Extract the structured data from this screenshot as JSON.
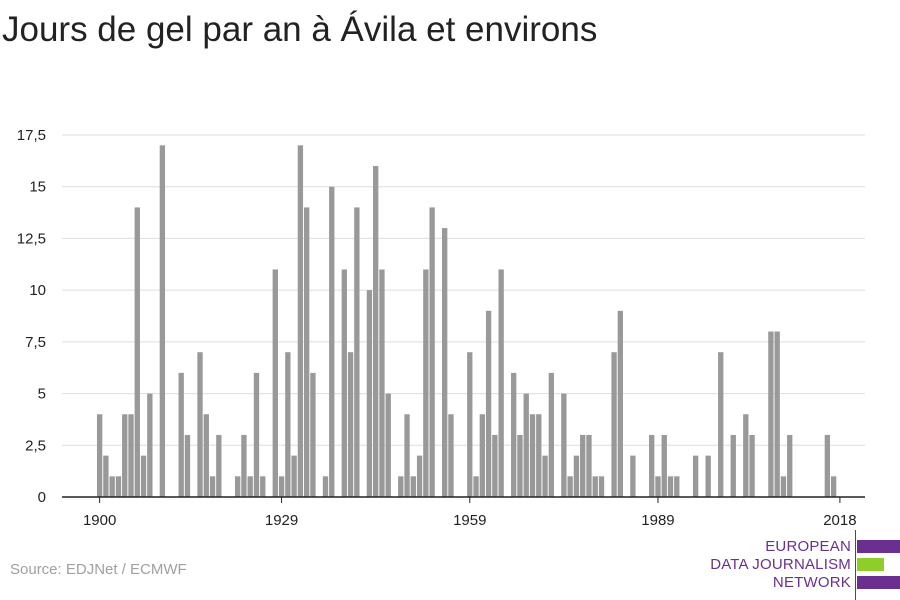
{
  "title": "Jours de gel par an à Ávila et environs",
  "source": "Source: EDJNet / ECMWF",
  "logo": {
    "line1": "EUROPEAN",
    "line2": "DATA JOURNALISM",
    "line3": "NETWORK",
    "colors": {
      "purple": "#6a2f8f",
      "green": "#8fce2a"
    }
  },
  "colors": {
    "bar": "#999999",
    "grid": "#dddddd",
    "axis": "#222222"
  },
  "chart_data": {
    "type": "bar",
    "title": "Jours de gel par an à Ávila et environs",
    "xlabel": "",
    "ylabel": "",
    "ylim": [
      0,
      17.5
    ],
    "yticks": [
      0,
      2.5,
      5,
      7.5,
      10,
      12.5,
      15,
      17.5
    ],
    "ytick_labels": [
      "0",
      "2,5",
      "5",
      "7,5",
      "10",
      "12,5",
      "15",
      "17,5"
    ],
    "xticks": [
      1900,
      1929,
      1959,
      1989,
      2018
    ],
    "xtick_labels": [
      "1900",
      "1929",
      "1959",
      "1989",
      "2018"
    ],
    "xlim": [
      1894,
      2022
    ],
    "grid": true,
    "legend": "none",
    "x": [
      1900,
      1901,
      1902,
      1903,
      1904,
      1905,
      1906,
      1907,
      1908,
      1909,
      1910,
      1911,
      1912,
      1913,
      1914,
      1915,
      1916,
      1917,
      1918,
      1919,
      1920,
      1921,
      1922,
      1923,
      1924,
      1925,
      1926,
      1927,
      1928,
      1929,
      1930,
      1931,
      1932,
      1933,
      1934,
      1935,
      1936,
      1937,
      1938,
      1939,
      1940,
      1941,
      1942,
      1943,
      1944,
      1945,
      1946,
      1947,
      1948,
      1949,
      1950,
      1951,
      1952,
      1953,
      1954,
      1955,
      1956,
      1957,
      1958,
      1959,
      1960,
      1961,
      1962,
      1963,
      1964,
      1965,
      1966,
      1967,
      1968,
      1969,
      1970,
      1971,
      1972,
      1973,
      1974,
      1975,
      1976,
      1977,
      1978,
      1979,
      1980,
      1981,
      1982,
      1983,
      1984,
      1985,
      1986,
      1987,
      1988,
      1989,
      1990,
      1991,
      1992,
      1993,
      1994,
      1995,
      1996,
      1997,
      1998,
      1999,
      2000,
      2001,
      2002,
      2003,
      2004,
      2005,
      2006,
      2007,
      2008,
      2009,
      2010,
      2011,
      2012,
      2013,
      2014,
      2015,
      2016,
      2017,
      2018,
      2019
    ],
    "values": [
      4,
      2,
      1,
      1,
      4,
      4,
      14,
      2,
      5,
      0,
      17,
      0,
      0,
      6,
      3,
      0,
      7,
      4,
      1,
      3,
      0,
      0,
      1,
      3,
      1,
      6,
      1,
      0,
      11,
      1,
      7,
      2,
      17,
      14,
      6,
      0,
      1,
      15,
      0,
      11,
      7,
      14,
      0,
      10,
      16,
      11,
      5,
      0,
      1,
      4,
      1,
      2,
      11,
      14,
      0,
      13,
      4,
      0,
      0,
      7,
      1,
      4,
      9,
      3,
      11,
      0,
      6,
      3,
      5,
      4,
      4,
      2,
      6,
      0,
      5,
      1,
      2,
      3,
      3,
      1,
      1,
      0,
      7,
      9,
      0,
      2,
      0,
      0,
      3,
      1,
      3,
      1,
      1,
      0,
      0,
      2,
      0,
      2,
      0,
      7,
      0,
      3,
      0,
      4,
      3,
      0,
      0,
      8,
      8,
      1,
      3,
      0,
      0,
      0,
      0,
      0,
      3,
      1,
      0,
      0
    ]
  }
}
